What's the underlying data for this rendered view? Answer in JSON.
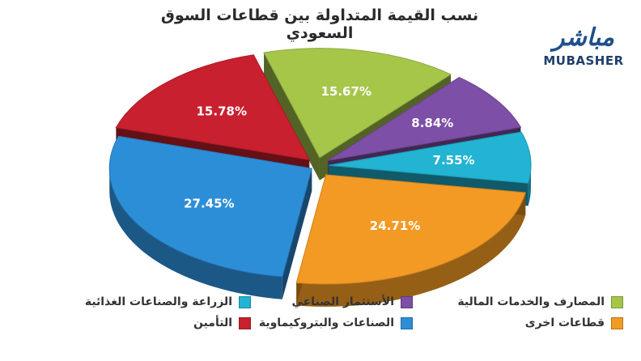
{
  "title": "نسب القيمة المتداولة بين قطاعات السوق السعودي",
  "logo": {
    "arabic": "مباشر",
    "english": "MUBASHER"
  },
  "chart_data": {
    "type": "pie",
    "title": "نسب القيمة المتداولة بين قطاعات السوق السعودي",
    "unit": "%",
    "series": [
      {
        "name": "المصارف والخدمات المالية",
        "value": 15.67,
        "label": "15.67%",
        "color": "#a6c64a"
      },
      {
        "name": "الأستثمار الصناعي",
        "value": 8.84,
        "label": "8.84%",
        "color": "#7e4fa6"
      },
      {
        "name": "الزراعة والصناعات الغذائية",
        "value": 7.55,
        "label": "7.55%",
        "color": "#22b4d2"
      },
      {
        "name": "قطاعات اخرى",
        "value": 24.71,
        "label": "24.71%",
        "color": "#f29a24"
      },
      {
        "name": "الصناعات والبتروكيماوية",
        "value": 27.45,
        "label": "27.45%",
        "color": "#2d8ed8"
      },
      {
        "name": "التأمين",
        "value": 15.78,
        "label": "15.78%",
        "color": "#c8202e"
      }
    ],
    "legend_position": "bottom"
  }
}
